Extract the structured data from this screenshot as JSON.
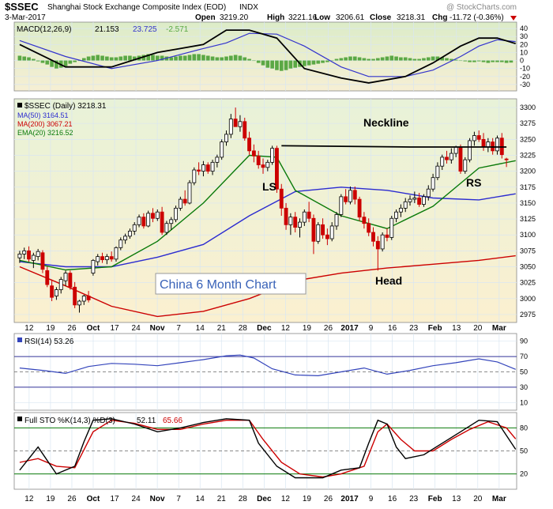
{
  "header": {
    "symbol": "$SSEC",
    "name": "Shanghai Stock Exchange Composite Index (EOD)",
    "exchange": "INDX",
    "date": "3-Mar-2017",
    "watermark": "@ StockCharts.com",
    "open_label": "Open",
    "open_value": "3219.20",
    "high_label": "High",
    "high_value": "3221.16",
    "low_label": "Low",
    "low_value": "3206.61",
    "close_label": "Close",
    "close_value": "3218.31",
    "chg_label": "Chg",
    "chg_value": "-11.72 (-0.36%)"
  },
  "colors": {
    "up": "#000000",
    "down": "#cc0000",
    "ma50": "#2b2bd0",
    "ma200": "#cc0000",
    "ema20": "#0a7a0a",
    "macd": "#000000",
    "signal": "#3333cc",
    "hist": "#5aa845",
    "rsi": "#3344bb",
    "k": "#000000",
    "d": "#cc0000",
    "panel_bg": "#ffffff",
    "grid": "#d9e6f2"
  },
  "macd_panel": {
    "legend": "MACD(12,26,9)",
    "v1": "21.153",
    "v2": "23.725",
    "v3": "-2.571",
    "ticks": [
      "40",
      "30",
      "20",
      "10",
      "0",
      "-10",
      "-20",
      "-30"
    ]
  },
  "price_panel": {
    "legend_main": "$SSEC (Daily) 3218.31",
    "legend_ma50": "MA(50) 3164.51",
    "legend_ma200": "MA(200) 3067.21",
    "legend_ema20": "EMA(20) 3216.52",
    "ticks": [
      "3300",
      "3275",
      "3250",
      "3225",
      "3200",
      "3175",
      "3150",
      "3125",
      "3100",
      "3075",
      "3050",
      "3025",
      "3000",
      "2975"
    ],
    "annotations": {
      "neckline": "Neckline",
      "ls": "LS",
      "rs": "RS",
      "head": "Head",
      "box_title": "China 6 Month Chart"
    }
  },
  "rsi_panel": {
    "legend": "RSI(14) 53.26",
    "ticks": [
      "90",
      "70",
      "50",
      "30",
      "10"
    ]
  },
  "sto_panel": {
    "legend_main": "Full STO %K(14,3) %D(3)",
    "legend_k": "52.11",
    "legend_d": "65.66",
    "ticks": [
      "80",
      "50",
      "20"
    ]
  },
  "x_axis": {
    "labels": [
      "12",
      "19",
      "26",
      "Oct",
      "17",
      "24",
      "Nov",
      "7",
      "14",
      "21",
      "28",
      "Dec",
      "12",
      "19",
      "26",
      "2017",
      "9",
      "16",
      "23",
      "Feb",
      "13",
      "20",
      "Mar"
    ],
    "bold": [
      "Oct",
      "Nov",
      "Dec",
      "2017",
      "Feb",
      "Mar"
    ]
  },
  "chart_data": {
    "type": "candlestick",
    "title": "Shanghai Stock Exchange Composite Index (EOD)",
    "period": "6 months daily, Sep 2016 - 3 Mar 2017",
    "price_range": [
      2965,
      3310
    ],
    "candles_ohlc": [
      [
        3064,
        3075,
        3056,
        3070
      ],
      [
        3070,
        3080,
        3062,
        3075
      ],
      [
        3075,
        3082,
        3058,
        3062
      ],
      [
        3060,
        3072,
        3048,
        3068
      ],
      [
        3066,
        3078,
        3060,
        3074
      ],
      [
        3072,
        3076,
        3040,
        3046
      ],
      [
        3044,
        3050,
        3018,
        3022
      ],
      [
        3020,
        3030,
        2996,
        3002
      ],
      [
        3004,
        3018,
        2998,
        3014
      ],
      [
        3014,
        3034,
        3008,
        3030
      ],
      [
        3028,
        3044,
        3020,
        3040
      ],
      [
        3040,
        3044,
        3014,
        3018
      ],
      [
        3018,
        3026,
        2985,
        2990
      ],
      [
        2990,
        2998,
        2978,
        2996
      ],
      [
        2996,
        3006,
        2990,
        3004
      ],
      [
        3004,
        3012,
        2994,
        2998
      ],
      [
        3040,
        3062,
        3036,
        3060
      ],
      [
        3058,
        3070,
        3052,
        3066
      ],
      [
        3066,
        3072,
        3056,
        3061
      ],
      [
        3061,
        3070,
        3054,
        3066
      ],
      [
        3066,
        3074,
        3058,
        3062
      ],
      [
        3062,
        3082,
        3058,
        3080
      ],
      [
        3080,
        3096,
        3076,
        3092
      ],
      [
        3092,
        3102,
        3086,
        3098
      ],
      [
        3098,
        3110,
        3094,
        3106
      ],
      [
        3106,
        3120,
        3100,
        3116
      ],
      [
        3116,
        3132,
        3112,
        3128
      ],
      [
        3128,
        3134,
        3110,
        3114
      ],
      [
        3114,
        3138,
        3112,
        3134
      ],
      [
        3134,
        3142,
        3120,
        3126
      ],
      [
        3126,
        3140,
        3122,
        3136
      ],
      [
        3136,
        3144,
        3100,
        3104
      ],
      [
        3104,
        3122,
        3100,
        3118
      ],
      [
        3118,
        3128,
        3108,
        3124
      ],
      [
        3124,
        3146,
        3120,
        3142
      ],
      [
        3142,
        3160,
        3138,
        3156
      ],
      [
        3156,
        3170,
        3146,
        3150
      ],
      [
        3150,
        3186,
        3148,
        3182
      ],
      [
        3182,
        3206,
        3178,
        3202
      ],
      [
        3202,
        3214,
        3194,
        3200
      ],
      [
        3200,
        3216,
        3192,
        3210
      ],
      [
        3210,
        3214,
        3196,
        3200
      ],
      [
        3200,
        3218,
        3194,
        3214
      ],
      [
        3214,
        3226,
        3206,
        3222
      ],
      [
        3222,
        3250,
        3218,
        3246
      ],
      [
        3246,
        3264,
        3240,
        3258
      ],
      [
        3258,
        3290,
        3252,
        3282
      ],
      [
        3282,
        3300,
        3274,
        3270
      ],
      [
        3270,
        3288,
        3262,
        3278
      ],
      [
        3278,
        3284,
        3248,
        3252
      ],
      [
        3252,
        3262,
        3226,
        3232
      ],
      [
        3232,
        3242,
        3214,
        3224
      ],
      [
        3224,
        3232,
        3204,
        3210
      ],
      [
        3210,
        3220,
        3196,
        3206
      ],
      [
        3206,
        3218,
        3200,
        3214
      ],
      [
        3214,
        3240,
        3210,
        3236
      ],
      [
        3236,
        3240,
        3166,
        3172
      ],
      [
        3172,
        3180,
        3130,
        3142
      ],
      [
        3142,
        3150,
        3108,
        3116
      ],
      [
        3116,
        3134,
        3100,
        3128
      ],
      [
        3128,
        3136,
        3104,
        3112
      ],
      [
        3112,
        3126,
        3096,
        3120
      ],
      [
        3120,
        3140,
        3114,
        3136
      ],
      [
        3136,
        3152,
        3120,
        3126
      ],
      [
        3126,
        3132,
        3070,
        3090
      ],
      [
        3090,
        3120,
        3086,
        3116
      ],
      [
        3116,
        3126,
        3094,
        3100
      ],
      [
        3100,
        3110,
        3084,
        3094
      ],
      [
        3094,
        3120,
        3090,
        3114
      ],
      [
        3114,
        3136,
        3108,
        3132
      ],
      [
        3132,
        3164,
        3128,
        3160
      ],
      [
        3160,
        3172,
        3148,
        3152
      ],
      [
        3152,
        3176,
        3148,
        3170
      ],
      [
        3170,
        3176,
        3148,
        3156
      ],
      [
        3156,
        3160,
        3122,
        3128
      ],
      [
        3128,
        3136,
        3110,
        3118
      ],
      [
        3118,
        3126,
        3098,
        3104
      ],
      [
        3104,
        3112,
        3082,
        3090
      ],
      [
        3090,
        3098,
        3044,
        3078
      ],
      [
        3078,
        3104,
        3074,
        3100
      ],
      [
        3100,
        3110,
        3090,
        3096
      ],
      [
        3096,
        3130,
        3092,
        3126
      ],
      [
        3126,
        3140,
        3120,
        3136
      ],
      [
        3136,
        3148,
        3128,
        3142
      ],
      [
        3142,
        3158,
        3136,
        3152
      ],
      [
        3152,
        3162,
        3146,
        3156
      ],
      [
        3156,
        3168,
        3150,
        3158
      ],
      [
        3158,
        3166,
        3144,
        3148
      ],
      [
        3148,
        3164,
        3144,
        3160
      ],
      [
        3160,
        3178,
        3154,
        3172
      ],
      [
        3172,
        3196,
        3168,
        3190
      ],
      [
        3190,
        3214,
        3186,
        3208
      ],
      [
        3208,
        3226,
        3202,
        3222
      ],
      [
        3222,
        3232,
        3212,
        3218
      ],
      [
        3218,
        3236,
        3212,
        3228
      ],
      [
        3228,
        3240,
        3222,
        3238
      ],
      [
        3238,
        3242,
        3196,
        3200
      ],
      [
        3200,
        3222,
        3196,
        3218
      ],
      [
        3218,
        3252,
        3214,
        3248
      ],
      [
        3248,
        3262,
        3240,
        3256
      ],
      [
        3256,
        3264,
        3246,
        3250
      ],
      [
        3250,
        3260,
        3232,
        3238
      ],
      [
        3238,
        3252,
        3230,
        3246
      ],
      [
        3246,
        3252,
        3226,
        3232
      ],
      [
        3232,
        3256,
        3226,
        3252
      ],
      [
        3252,
        3260,
        3220,
        3226
      ],
      [
        3219.2,
        3221.16,
        3206.61,
        3218.31
      ]
    ],
    "ma50": [
      [
        0,
        3058
      ],
      [
        10,
        3050
      ],
      [
        20,
        3050
      ],
      [
        30,
        3065
      ],
      [
        40,
        3085
      ],
      [
        50,
        3130
      ],
      [
        60,
        3168
      ],
      [
        70,
        3175
      ],
      [
        80,
        3170
      ],
      [
        90,
        3158
      ],
      [
        100,
        3155
      ],
      [
        108,
        3164.51
      ]
    ],
    "ma200": [
      [
        0,
        3050
      ],
      [
        10,
        3020
      ],
      [
        20,
        2988
      ],
      [
        30,
        2972
      ],
      [
        40,
        2980
      ],
      [
        50,
        3000
      ],
      [
        60,
        3028
      ],
      [
        70,
        3040
      ],
      [
        80,
        3048
      ],
      [
        90,
        3054
      ],
      [
        100,
        3060
      ],
      [
        108,
        3067.21
      ]
    ],
    "ema20": [
      [
        0,
        3060
      ],
      [
        10,
        3045
      ],
      [
        20,
        3050
      ],
      [
        30,
        3090
      ],
      [
        40,
        3150
      ],
      [
        50,
        3225
      ],
      [
        56,
        3222
      ],
      [
        60,
        3170
      ],
      [
        70,
        3130
      ],
      [
        80,
        3110
      ],
      [
        90,
        3145
      ],
      [
        100,
        3205
      ],
      [
        108,
        3216.52
      ]
    ],
    "neckline": [
      [
        57,
        3240
      ],
      [
        85,
        3238
      ],
      [
        106,
        3238
      ]
    ],
    "macd": [
      [
        0,
        20
      ],
      [
        10,
        -8
      ],
      [
        20,
        -8
      ],
      [
        30,
        10
      ],
      [
        35,
        15
      ],
      [
        40,
        20
      ],
      [
        45,
        38
      ],
      [
        50,
        38
      ],
      [
        56,
        28
      ],
      [
        62,
        -10
      ],
      [
        70,
        -22
      ],
      [
        76,
        -28
      ],
      [
        84,
        -20
      ],
      [
        90,
        -3
      ],
      [
        96,
        18
      ],
      [
        100,
        28
      ],
      [
        104,
        28
      ],
      [
        108,
        21.153
      ]
    ],
    "signal": [
      [
        0,
        25
      ],
      [
        10,
        5
      ],
      [
        20,
        -10
      ],
      [
        30,
        0
      ],
      [
        40,
        15
      ],
      [
        45,
        22
      ],
      [
        50,
        34
      ],
      [
        56,
        33
      ],
      [
        62,
        18
      ],
      [
        70,
        -8
      ],
      [
        76,
        -20
      ],
      [
        84,
        -20
      ],
      [
        90,
        -12
      ],
      [
        96,
        5
      ],
      [
        100,
        18
      ],
      [
        104,
        26
      ],
      [
        108,
        23.725
      ]
    ],
    "macd_hist": [
      6,
      5,
      4,
      2,
      -1,
      -3,
      -5,
      -8,
      -10,
      -9,
      -7,
      -4,
      -2,
      0,
      3,
      5,
      6,
      7,
      6,
      5,
      4,
      4,
      5,
      6,
      6,
      5,
      6,
      7,
      8,
      7,
      6,
      6,
      5,
      4,
      5,
      6,
      6,
      7,
      8,
      8,
      7,
      6,
      5,
      4,
      4,
      5,
      6,
      7,
      6,
      4,
      2,
      0,
      -3,
      -6,
      -9,
      -10,
      -12,
      -13,
      -12,
      -10,
      -9,
      -8,
      -7,
      -6,
      -5,
      -4,
      -3,
      -2,
      0,
      2,
      3,
      4,
      5,
      5,
      4,
      3,
      2,
      2,
      3,
      4,
      5,
      6,
      5,
      4,
      4,
      3,
      2,
      2,
      3,
      4,
      5,
      5,
      4,
      3,
      2,
      1,
      0,
      -1,
      -2,
      -2,
      -1,
      -2,
      -3,
      -2,
      -2,
      -2,
      -3,
      -2.571
    ],
    "rsi": [
      [
        0,
        55
      ],
      [
        5,
        52
      ],
      [
        10,
        48
      ],
      [
        15,
        57
      ],
      [
        20,
        61
      ],
      [
        25,
        60
      ],
      [
        30,
        58
      ],
      [
        35,
        62
      ],
      [
        40,
        66
      ],
      [
        45,
        71
      ],
      [
        48,
        72
      ],
      [
        51,
        68
      ],
      [
        55,
        54
      ],
      [
        60,
        46
      ],
      [
        65,
        45
      ],
      [
        70,
        50
      ],
      [
        75,
        55
      ],
      [
        80,
        47
      ],
      [
        85,
        52
      ],
      [
        90,
        58
      ],
      [
        95,
        62
      ],
      [
        100,
        67
      ],
      [
        104,
        63
      ],
      [
        108,
        53.26
      ]
    ],
    "sto_k": [
      [
        0,
        25
      ],
      [
        4,
        55
      ],
      [
        8,
        20
      ],
      [
        12,
        30
      ],
      [
        14,
        62
      ],
      [
        16,
        90
      ],
      [
        20,
        92
      ],
      [
        25,
        85
      ],
      [
        30,
        75
      ],
      [
        35,
        80
      ],
      [
        40,
        87
      ],
      [
        45,
        92
      ],
      [
        50,
        90
      ],
      [
        52,
        60
      ],
      [
        56,
        30
      ],
      [
        60,
        15
      ],
      [
        66,
        15
      ],
      [
        70,
        25
      ],
      [
        74,
        28
      ],
      [
        76,
        60
      ],
      [
        78,
        90
      ],
      [
        80,
        85
      ],
      [
        82,
        55
      ],
      [
        84,
        40
      ],
      [
        88,
        45
      ],
      [
        92,
        60
      ],
      [
        96,
        75
      ],
      [
        100,
        90
      ],
      [
        104,
        88
      ],
      [
        108,
        52.11
      ]
    ],
    "sto_d": [
      [
        0,
        35
      ],
      [
        4,
        40
      ],
      [
        8,
        30
      ],
      [
        12,
        28
      ],
      [
        16,
        75
      ],
      [
        20,
        90
      ],
      [
        25,
        86
      ],
      [
        30,
        78
      ],
      [
        35,
        78
      ],
      [
        40,
        85
      ],
      [
        45,
        90
      ],
      [
        50,
        90
      ],
      [
        53,
        65
      ],
      [
        57,
        35
      ],
      [
        61,
        20
      ],
      [
        66,
        16
      ],
      [
        70,
        20
      ],
      [
        75,
        30
      ],
      [
        78,
        75
      ],
      [
        80,
        85
      ],
      [
        83,
        65
      ],
      [
        86,
        50
      ],
      [
        90,
        50
      ],
      [
        94,
        65
      ],
      [
        98,
        78
      ],
      [
        102,
        88
      ],
      [
        106,
        80
      ],
      [
        108,
        65.66
      ]
    ],
    "rsi_ylim": [
      0,
      100
    ],
    "sto_ylim": [
      0,
      100
    ]
  }
}
